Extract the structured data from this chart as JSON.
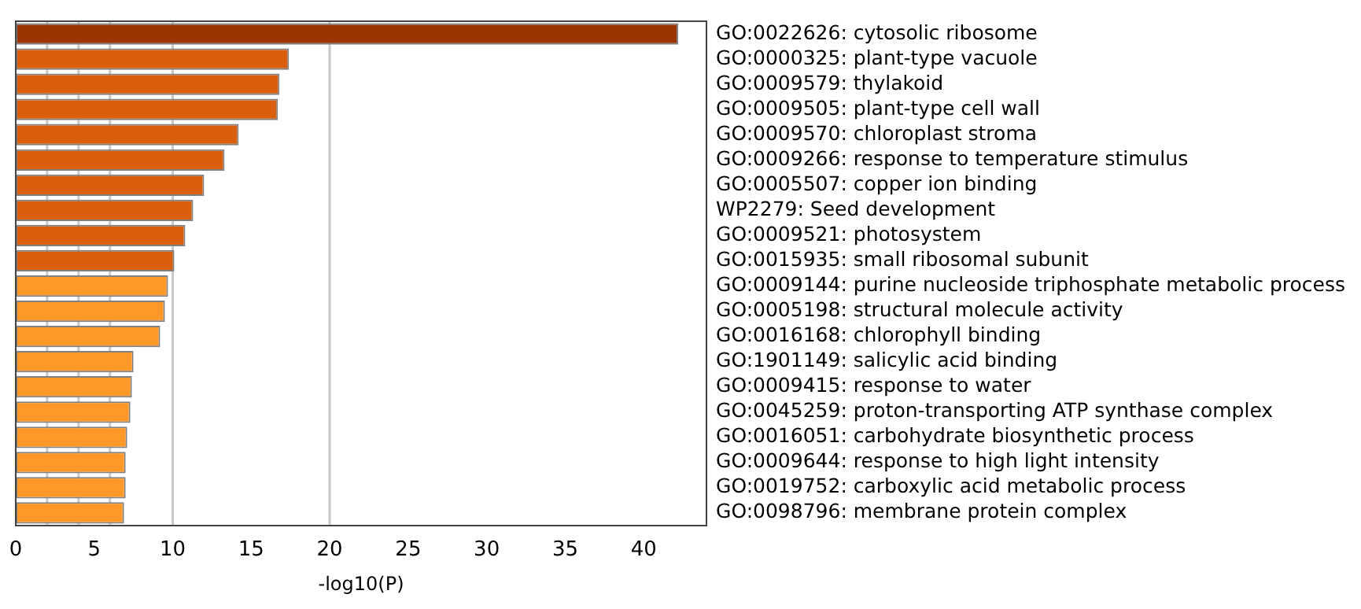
{
  "chart_data": {
    "type": "bar",
    "orientation": "horizontal",
    "xlabel": "-log10(P)",
    "categories": [
      "GO:0022626: cytosolic ribosome",
      "GO:0000325: plant-type vacuole",
      "GO:0009579: thylakoid",
      "GO:0009505: plant-type cell wall",
      "GO:0009570: chloroplast stroma",
      "GO:0009266: response to temperature stimulus",
      "GO:0005507: copper ion binding",
      "WP2279: Seed development",
      "GO:0009521: photosystem",
      "GO:0015935: small ribosomal subunit",
      "GO:0009144: purine nucleoside triphosphate metabolic process",
      "GO:0005198: structural molecule activity",
      "GO:0016168: chlorophyll binding",
      "GO:1901149: salicylic acid binding",
      "GO:0009415: response to water",
      "GO:0045259: proton-transporting ATP synthase complex",
      "GO:0016051: carbohydrate biosynthetic process",
      "GO:0009644: response to high light intensity",
      "GO:0019752: carboxylic acid metabolic process",
      "GO:0098796: membrane protein complex"
    ],
    "values": [
      42.2,
      17.4,
      16.8,
      16.7,
      14.2,
      13.3,
      12.0,
      11.3,
      10.8,
      10.1,
      9.7,
      9.5,
      9.2,
      7.5,
      7.4,
      7.3,
      7.1,
      7.0,
      7.0,
      6.9
    ],
    "colors": [
      "#993300",
      "#d95f0e",
      "#d95f0e",
      "#d95f0e",
      "#d95f0e",
      "#d95f0e",
      "#d95f0e",
      "#d95f0e",
      "#d95f0e",
      "#d95f0e",
      "#fe9929",
      "#fe9929",
      "#fe9929",
      "#fe9929",
      "#fe9929",
      "#fe9929",
      "#fe9929",
      "#fe9929",
      "#fe9929",
      "#fe9929"
    ],
    "xlim": [
      0,
      44
    ],
    "xticks": [
      0,
      5,
      10,
      15,
      20,
      25,
      30,
      35,
      40
    ],
    "grid": false,
    "legend": false,
    "ref_lines": [
      {
        "axis": "x",
        "value": 2,
        "color": "#c8c8c8"
      },
      {
        "axis": "x",
        "value": 4,
        "color": "#c8c8c8"
      },
      {
        "axis": "x",
        "value": 6,
        "color": "#c8c8c8"
      },
      {
        "axis": "x",
        "value": 10,
        "color": "#c8c8c8"
      },
      {
        "axis": "x",
        "value": 20,
        "color": "#c8c8c8"
      }
    ]
  }
}
